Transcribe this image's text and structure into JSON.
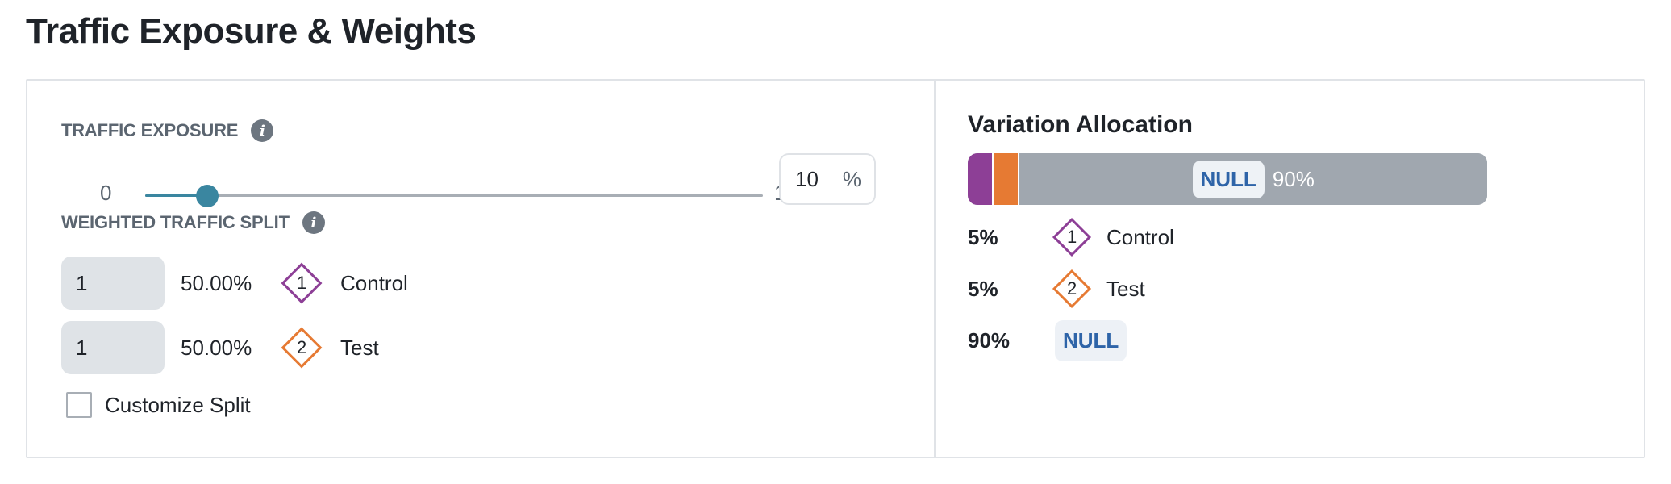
{
  "page": {
    "title": "Traffic Exposure & Weights"
  },
  "colors": {
    "accent": "#3a86a0",
    "control": "#8d3f96",
    "test": "#e67a33",
    "null_bar": "#a0a7af",
    "null_text": "#2e64a8"
  },
  "exposure": {
    "label": "TRAFFIC EXPOSURE",
    "info_icon": "info-icon",
    "min": "0",
    "max": "100",
    "value": "10",
    "unit": "%",
    "slider_fraction": 0.1
  },
  "split": {
    "label": "WEIGHTED TRAFFIC SPLIT",
    "info_icon": "info-icon",
    "rows": [
      {
        "weight": "1",
        "percent": "50.00%",
        "badge": "1",
        "name": "Control"
      },
      {
        "weight": "1",
        "percent": "50.00%",
        "badge": "2",
        "name": "Test"
      }
    ],
    "customize_label": "Customize Split",
    "customize_checked": false
  },
  "allocation": {
    "title": "Variation Allocation",
    "bar": {
      "null_label": "NULL",
      "null_percent": "90%"
    },
    "segments": [
      {
        "key": "control",
        "fraction": 0.05
      },
      {
        "key": "test",
        "fraction": 0.05
      },
      {
        "key": "null",
        "fraction": 0.9
      }
    ],
    "rows": [
      {
        "percent": "5%",
        "badge": "1",
        "name": "Control"
      },
      {
        "percent": "5%",
        "badge": "2",
        "name": "Test"
      },
      {
        "percent": "90%",
        "null_label": "NULL"
      }
    ]
  }
}
